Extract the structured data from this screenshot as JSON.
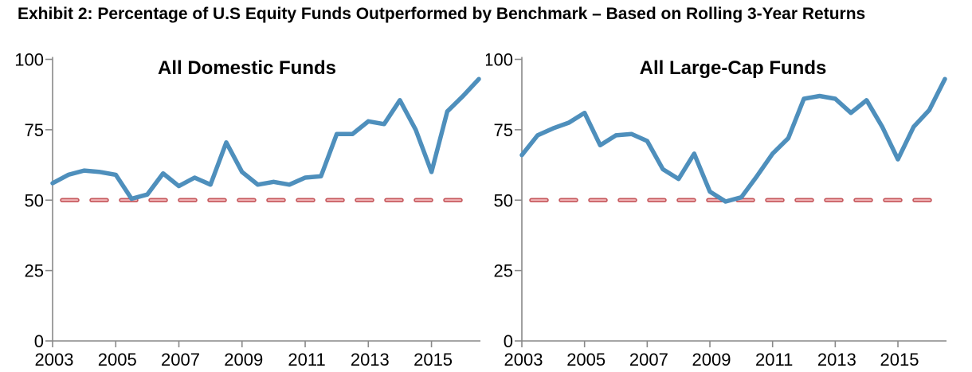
{
  "header": {
    "title": "Exhibit 2: Percentage of U.S Equity Funds Outperformed by Benchmark – Based on Rolling 3-Year Returns"
  },
  "chart_data": [
    {
      "type": "line",
      "title": "All Domestic Funds",
      "x": [
        2003,
        2003.5,
        2004,
        2004.5,
        2005,
        2005.5,
        2006,
        2006.5,
        2007,
        2007.5,
        2008,
        2008.5,
        2009,
        2009.5,
        2010,
        2010.5,
        2011,
        2011.5,
        2012,
        2012.5,
        2013,
        2013.5,
        2014,
        2014.5,
        2015,
        2015.5,
        2016,
        2016.5
      ],
      "series": [
        {
          "name": "Percent of funds outperformed by benchmark",
          "values": [
            56,
            59,
            60.5,
            60,
            59,
            50.5,
            52,
            59.5,
            55,
            58,
            55.5,
            70.5,
            60,
            55.5,
            56.5,
            55.5,
            58,
            58.5,
            73.5,
            73.5,
            78,
            77,
            85.5,
            75,
            60,
            81.5,
            87,
            93
          ]
        }
      ],
      "benchmark": {
        "value": 50,
        "style": "dashed",
        "color": "#c6595e",
        "inner_color": "#f0b4b6"
      },
      "line_color": "#4e8fbc",
      "ylim": [
        0,
        100
      ],
      "yticks": [
        "0",
        "25",
        "50",
        "75",
        "100"
      ],
      "xticks": [
        "2003",
        "2005",
        "2007",
        "2009",
        "2011",
        "2013",
        "2015"
      ],
      "xlabel": "",
      "ylabel": "",
      "grid": "off",
      "legend": "none"
    },
    {
      "type": "line",
      "title": "All Large-Cap Funds",
      "x": [
        2003,
        2003.5,
        2004,
        2004.5,
        2005,
        2005.5,
        2006,
        2006.5,
        2007,
        2007.5,
        2008,
        2008.5,
        2009,
        2009.5,
        2010,
        2010.5,
        2011,
        2011.5,
        2012,
        2012.5,
        2013,
        2013.5,
        2014,
        2014.5,
        2015,
        2015.5,
        2016,
        2016.5
      ],
      "series": [
        {
          "name": "Percent of funds outperformed by benchmark",
          "values": [
            66,
            73,
            75.5,
            77.5,
            81,
            69.5,
            73,
            73.5,
            71,
            61,
            57.5,
            66.5,
            53,
            49.5,
            51,
            58.5,
            66.5,
            72,
            86,
            87,
            86,
            81,
            85.5,
            76,
            64.5,
            76,
            82,
            93
          ]
        }
      ],
      "benchmark": {
        "value": 50,
        "style": "dashed",
        "color": "#c6595e",
        "inner_color": "#f0b4b6"
      },
      "line_color": "#4e8fbc",
      "ylim": [
        0,
        100
      ],
      "yticks": [
        "0",
        "25",
        "50",
        "75",
        "100"
      ],
      "xticks": [
        "2003",
        "2005",
        "2007",
        "2009",
        "2011",
        "2013",
        "2015"
      ],
      "xlabel": "",
      "ylabel": "",
      "grid": "off",
      "legend": "none"
    }
  ]
}
